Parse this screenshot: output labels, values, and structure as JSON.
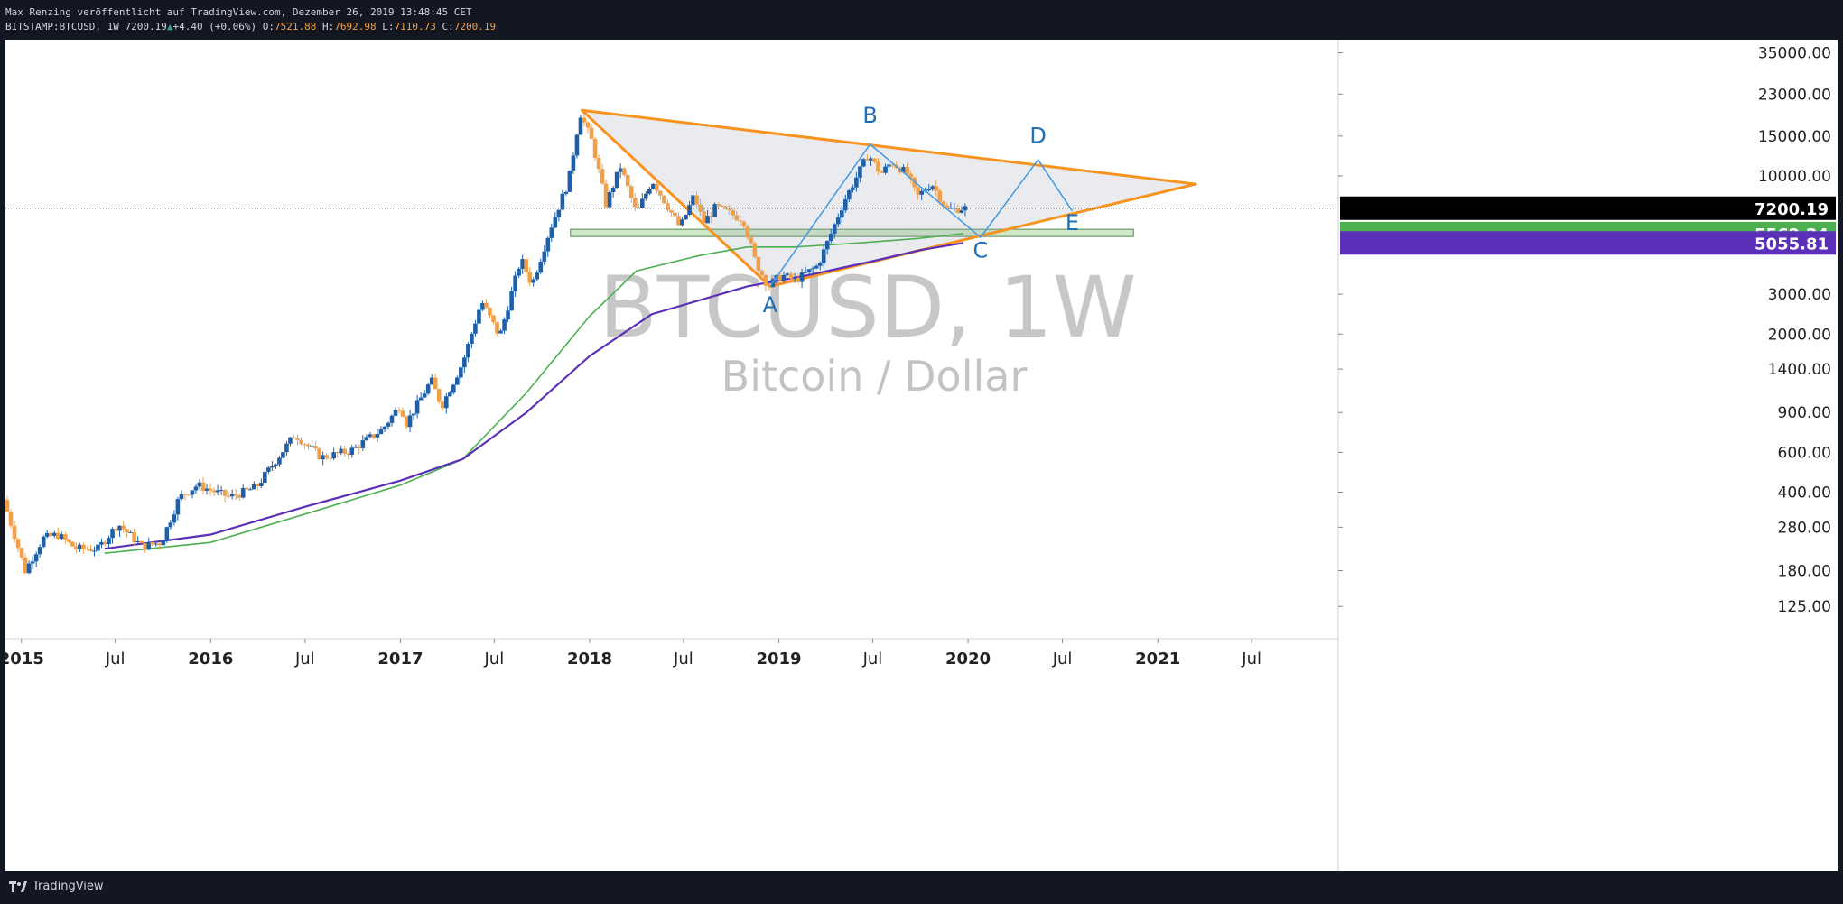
{
  "header": {
    "publisher_line": "Max Renzing veröffentlicht auf TradingView.com, Dezember 26, 2019 13:48:45 CET",
    "symbol": "BITSTAMP:BTCUSD, 1W",
    "last": "7200.19",
    "change": "+4.40 (+0.06%)",
    "o_label": "O:",
    "o_value": "7521.88",
    "h_label": "H:",
    "h_value": "7692.98",
    "l_label": "L:",
    "l_value": "7110.73",
    "c_label": "C:",
    "c_value": "7200.19"
  },
  "watermark": {
    "symbol": "BTCUSD, 1W",
    "description": "Bitcoin / Dollar"
  },
  "footer": {
    "brand": "TradingView"
  },
  "colors": {
    "up": "#1f5fa8",
    "down": "#f0a04b",
    "triangle": "#f7931e",
    "wave": "#4a9ce0",
    "ma_green": "#4caf50",
    "ma_purple": "#5b2fb8",
    "support_zone": "#cfe8c8"
  },
  "chart_data": {
    "type": "candlestick",
    "title": "",
    "xlabel": "",
    "ylabel": "",
    "scale": "log",
    "ylim": [
      90,
      40000
    ],
    "xlim": [
      "2014-12-01",
      "2021-12-15"
    ],
    "y_ticks": [
      "125.00",
      "180.00",
      "280.00",
      "400.00",
      "600.00",
      "900.00",
      "1400.00",
      "2000.00",
      "3000.00",
      "10000.00",
      "15000.00",
      "23000.00",
      "35000.00"
    ],
    "x_ticks": [
      {
        "label": "2015",
        "date": "2015-01-01",
        "bold": true
      },
      {
        "label": "Jul",
        "date": "2015-07-01",
        "bold": false
      },
      {
        "label": "2016",
        "date": "2016-01-01",
        "bold": true
      },
      {
        "label": "Jul",
        "date": "2016-07-01",
        "bold": false
      },
      {
        "label": "2017",
        "date": "2017-01-01",
        "bold": true
      },
      {
        "label": "Jul",
        "date": "2017-07-01",
        "bold": false
      },
      {
        "label": "2018",
        "date": "2018-01-01",
        "bold": true
      },
      {
        "label": "Jul",
        "date": "2018-07-01",
        "bold": false
      },
      {
        "label": "2019",
        "date": "2019-01-01",
        "bold": true
      },
      {
        "label": "Jul",
        "date": "2019-07-01",
        "bold": false
      },
      {
        "label": "2020",
        "date": "2020-01-01",
        "bold": true
      },
      {
        "label": "Jul",
        "date": "2020-07-01",
        "bold": false
      },
      {
        "label": "2021",
        "date": "2021-01-01",
        "bold": true
      },
      {
        "label": "Jul",
        "date": "2021-07-01",
        "bold": false
      }
    ],
    "price_anchors": [
      [
        "2014-12-01",
        370
      ],
      [
        "2015-01-12",
        180
      ],
      [
        "2015-02-15",
        250
      ],
      [
        "2015-03-15",
        260
      ],
      [
        "2015-04-20",
        225
      ],
      [
        "2015-06-01",
        225
      ],
      [
        "2015-07-10",
        290
      ],
      [
        "2015-08-25",
        230
      ],
      [
        "2015-10-01",
        240
      ],
      [
        "2015-11-05",
        380
      ],
      [
        "2015-12-10",
        430
      ],
      [
        "2016-02-10",
        380
      ],
      [
        "2016-04-01",
        420
      ],
      [
        "2016-06-15",
        720
      ],
      [
        "2016-08-05",
        570
      ],
      [
        "2016-10-01",
        610
      ],
      [
        "2016-12-01",
        760
      ],
      [
        "2017-01-05",
        980
      ],
      [
        "2017-01-15",
        800
      ],
      [
        "2017-03-05",
        1250
      ],
      [
        "2017-03-25",
        960
      ],
      [
        "2017-05-05",
        1500
      ],
      [
        "2017-06-10",
        2800
      ],
      [
        "2017-07-15",
        1950
      ],
      [
        "2017-08-25",
        4300
      ],
      [
        "2017-09-15",
        3300
      ],
      [
        "2017-10-20",
        5800
      ],
      [
        "2017-11-25",
        9500
      ],
      [
        "2017-12-17",
        19000
      ],
      [
        "2018-01-10",
        14000
      ],
      [
        "2018-02-05",
        7500
      ],
      [
        "2018-03-05",
        11000
      ],
      [
        "2018-04-05",
        6800
      ],
      [
        "2018-05-05",
        9600
      ],
      [
        "2018-06-28",
        5900
      ],
      [
        "2018-07-25",
        8200
      ],
      [
        "2018-08-12",
        6200
      ],
      [
        "2018-09-05",
        7300
      ],
      [
        "2018-10-28",
        6400
      ],
      [
        "2018-11-20",
        4200
      ],
      [
        "2018-12-15",
        3250
      ],
      [
        "2019-01-10",
        3650
      ],
      [
        "2019-02-05",
        3450
      ],
      [
        "2019-03-20",
        4000
      ],
      [
        "2019-04-10",
        5200
      ],
      [
        "2019-05-10",
        7700
      ],
      [
        "2019-06-26",
        12500
      ],
      [
        "2019-07-20",
        10200
      ],
      [
        "2019-08-10",
        11500
      ],
      [
        "2019-09-10",
        10200
      ],
      [
        "2019-09-28",
        8050
      ],
      [
        "2019-10-26",
        9300
      ],
      [
        "2019-11-25",
        7100
      ],
      [
        "2019-12-23",
        7200
      ]
    ],
    "series": [
      {
        "kind": "moving-average",
        "color": "#4caf50",
        "points": [
          [
            "2015-06-10",
            215
          ],
          [
            "2016-01-01",
            240
          ],
          [
            "2016-07-01",
            320
          ],
          [
            "2017-01-01",
            430
          ],
          [
            "2017-05-01",
            560
          ],
          [
            "2017-09-01",
            1100
          ],
          [
            "2018-01-01",
            2400
          ],
          [
            "2018-04-01",
            3800
          ],
          [
            "2018-08-01",
            4450
          ],
          [
            "2018-11-01",
            4850
          ],
          [
            "2019-02-01",
            4850
          ],
          [
            "2019-06-01",
            5050
          ],
          [
            "2019-10-01",
            5300
          ],
          [
            "2019-12-23",
            5562
          ]
        ]
      },
      {
        "kind": "moving-average",
        "color": "#5b2fb8",
        "points": [
          [
            "2015-06-10",
            225
          ],
          [
            "2016-01-01",
            260
          ],
          [
            "2016-07-01",
            345
          ],
          [
            "2017-01-01",
            450
          ],
          [
            "2017-05-01",
            560
          ],
          [
            "2017-09-01",
            900
          ],
          [
            "2018-01-01",
            1600
          ],
          [
            "2018-05-01",
            2450
          ],
          [
            "2018-11-01",
            3250
          ],
          [
            "2019-03-01",
            3650
          ],
          [
            "2019-07-01",
            4200
          ],
          [
            "2019-10-01",
            4700
          ],
          [
            "2019-12-23",
            5056
          ]
        ]
      }
    ],
    "triangle": [
      [
        "2017-12-17",
        19500
      ],
      [
        "2021-03-15",
        9200
      ],
      [
        "2018-12-15",
        3250
      ]
    ],
    "wave": [
      [
        "2018-12-15",
        3250
      ],
      [
        "2019-06-26",
        13800
      ],
      [
        "2020-01-25",
        5350
      ],
      [
        "2020-05-15",
        11800
      ],
      [
        "2020-07-20",
        7000
      ]
    ],
    "support_zone": {
      "y": 5600,
      "x_start": "2017-11-25",
      "x_end": "2020-11-15"
    },
    "annotations": [
      {
        "text": "A",
        "date": "2018-12-15",
        "value": 2500
      },
      {
        "text": "B",
        "date": "2019-06-26",
        "value": 17200
      },
      {
        "text": "C",
        "date": "2020-01-25",
        "value": 4350
      },
      {
        "text": "D",
        "date": "2020-05-15",
        "value": 14000
      },
      {
        "text": "E",
        "date": "2020-07-20",
        "value": 5750
      }
    ],
    "price_labels": [
      {
        "text": "7200.19",
        "value": 7200.19,
        "bg": "#000000"
      },
      {
        "text": "5562.24",
        "value": 5562.24,
        "bg": "#4caf50"
      },
      {
        "text": "5055.81",
        "value": 5055.81,
        "bg": "#5b2fb8"
      }
    ]
  }
}
